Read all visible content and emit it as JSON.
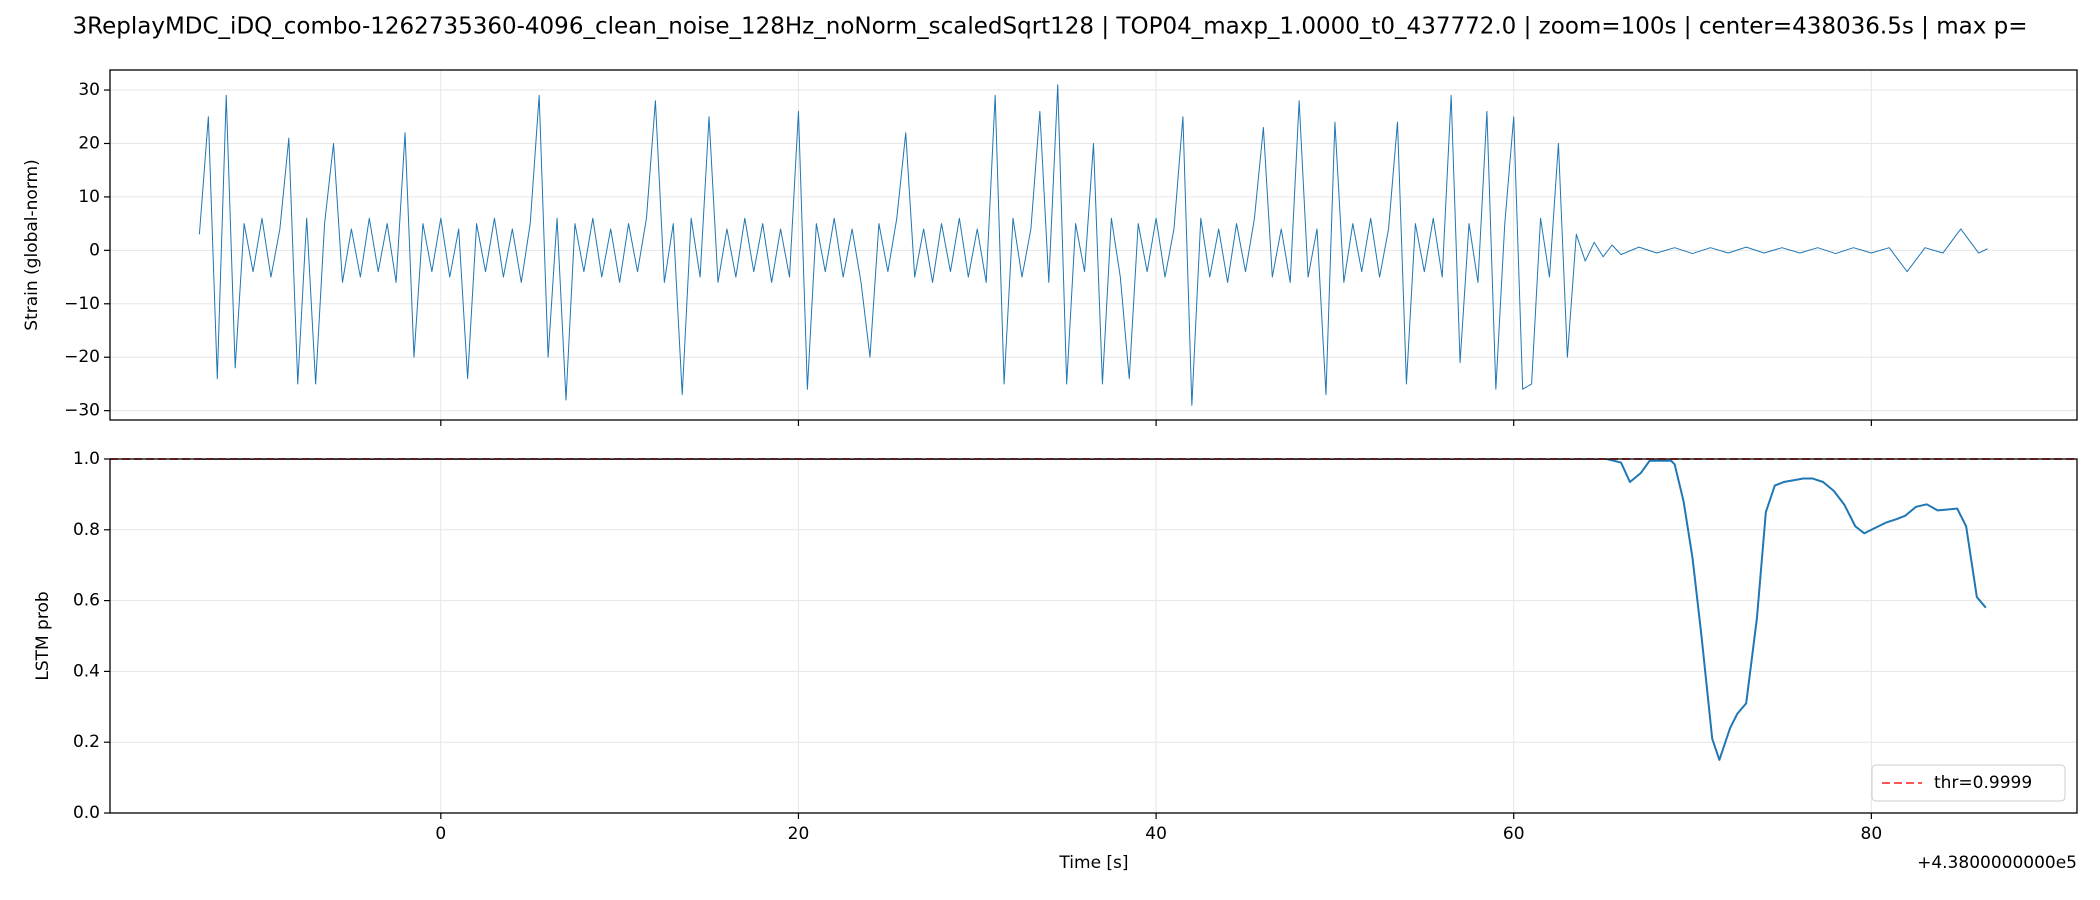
{
  "title": "3ReplayMDC_iDQ_combo-1262735360-4096_clean_noise_128Hz_noNorm_scaledSqrt128 | TOP04_maxp_1.0000_t0_437772.0 | zoom=100s | center=438036.5s | max p=",
  "xlabel": "Time [s]",
  "x_offset_label": "+4.3800000000e5",
  "chart_data": [
    {
      "type": "line",
      "ylabel": "Strain (global-norm)",
      "grid": true,
      "xlim": [
        -18.5,
        91.5
      ],
      "xticks": [
        0,
        20,
        40,
        60,
        80
      ],
      "show_xtick_labels": false,
      "ylim": [
        -31.75,
        33.75
      ],
      "yticks": [
        {
          "value": -30,
          "label": "−30"
        },
        {
          "value": -20,
          "label": "−20"
        },
        {
          "value": -10,
          "label": "−10"
        },
        0,
        10,
        20,
        30
      ],
      "series": [
        {
          "color": "#1f77b4",
          "width": 1,
          "x": [
            -13.5,
            -13,
            -12.5,
            -12,
            -11.5,
            -11,
            -10.5,
            -10,
            -9.5,
            -9,
            -8.5,
            -8,
            -7.5,
            -7,
            -6.5,
            -6,
            -5.5,
            -5,
            -4.5,
            -4,
            -3.5,
            -3,
            -2.5,
            -2,
            -1.5,
            -1,
            -0.5,
            0,
            0.5,
            1,
            1.5,
            2,
            2.5,
            3,
            3.5,
            4,
            4.5,
            5,
            5.5,
            6,
            6.5,
            7,
            7.5,
            8,
            8.5,
            9,
            9.5,
            10,
            10.5,
            11,
            11.5,
            12,
            12.5,
            13,
            13.5,
            14,
            14.5,
            15,
            15.5,
            16,
            16.5,
            17,
            17.5,
            18,
            18.5,
            19,
            19.5,
            20,
            20.5,
            21,
            21.5,
            22,
            22.5,
            23,
            23.5,
            24,
            24.5,
            25,
            25.5,
            26,
            26.5,
            27,
            27.5,
            28,
            28.5,
            29,
            29.5,
            30,
            30.5,
            31,
            31.5,
            32,
            32.5,
            33,
            33.5,
            34,
            34.5,
            35,
            35.5,
            36,
            36.5,
            37,
            37.5,
            38,
            38.5,
            39,
            39.5,
            40,
            40.5,
            41,
            41.5,
            42,
            42.5,
            43,
            43.5,
            44,
            44.5,
            45,
            45.5,
            46,
            46.5,
            47,
            47.5,
            48,
            48.5,
            49,
            49.5,
            50,
            50.5,
            51,
            51.5,
            52,
            52.5,
            53,
            53.5,
            54,
            54.5,
            55,
            55.5,
            56,
            56.5,
            57,
            57.5,
            58,
            58.5,
            59,
            59.5,
            60,
            60.5,
            61,
            61.5,
            62,
            62.5,
            63,
            63.5,
            64,
            64.5,
            65,
            65.5,
            66,
            67,
            68,
            69,
            70,
            71,
            72,
            73,
            74,
            75,
            76,
            77,
            78,
            79,
            80,
            81,
            82,
            83,
            84,
            85,
            86,
            86.5
          ],
          "values": [
            3,
            25,
            -24,
            29,
            -22,
            5,
            -4,
            6,
            -5,
            4,
            21,
            -25,
            6,
            -25,
            5,
            20,
            -6,
            4,
            -5,
            6,
            -4,
            5,
            -6,
            22,
            -20,
            5,
            -4,
            6,
            -5,
            4,
            -24,
            5,
            -4,
            6,
            -5,
            4,
            -6,
            5,
            29,
            -20,
            6,
            -28,
            5,
            -4,
            6,
            -5,
            4,
            -6,
            5,
            -4,
            6,
            28,
            -6,
            5,
            -27,
            6,
            -5,
            25,
            -6,
            4,
            -5,
            6,
            -4,
            5,
            -6,
            4,
            -5,
            26,
            -26,
            5,
            -4,
            6,
            -5,
            4,
            -6,
            -20,
            5,
            -4,
            6,
            22,
            -5,
            4,
            -6,
            5,
            -4,
            6,
            -5,
            4,
            -6,
            29,
            -25,
            6,
            -5,
            4,
            26,
            -6,
            31,
            -25,
            5,
            -4,
            20,
            -25,
            6,
            -5,
            -24,
            5,
            -4,
            6,
            -5,
            4,
            25,
            -29,
            6,
            -5,
            4,
            -6,
            5,
            -4,
            6,
            23,
            -5,
            4,
            -6,
            28,
            -5,
            4,
            -27,
            24,
            -6,
            5,
            -4,
            6,
            -5,
            4,
            24,
            -25,
            5,
            -4,
            6,
            -5,
            29,
            -21,
            5,
            -6,
            26,
            -26,
            5,
            25,
            -26,
            -25,
            6,
            -5,
            20,
            -20,
            3,
            -2,
            1.5,
            -1.2,
            1,
            -0.8,
            0.6,
            -0.5,
            0.5,
            -0.6,
            0.5,
            -0.5,
            0.6,
            -0.5,
            0.5,
            -0.5,
            0.5,
            -0.6,
            0.5,
            -0.5,
            0.5,
            -4,
            0.5,
            -0.5,
            4,
            -0.5,
            0.3
          ]
        }
      ]
    },
    {
      "type": "line",
      "ylabel": "LSTM prob",
      "grid": true,
      "xlim": [
        -18.5,
        91.5
      ],
      "xticks": [
        0,
        20,
        40,
        60,
        80
      ],
      "show_xtick_labels": true,
      "ylim": [
        0,
        1
      ],
      "yticks": [
        {
          "value": 0,
          "label": "0.0"
        },
        {
          "value": 0.2,
          "label": "0.2"
        },
        {
          "value": 0.4,
          "label": "0.4"
        },
        {
          "value": 0.6,
          "label": "0.6"
        },
        {
          "value": 0.8,
          "label": "0.8"
        },
        {
          "value": 1,
          "label": "1.0"
        }
      ],
      "series": [
        {
          "color": "#1f77b4",
          "width": 2,
          "x": [
            -13.5,
            65.2,
            66.0,
            66.5,
            67.1,
            67.6,
            68.8,
            69.0,
            69.5,
            70.0,
            70.5,
            71.1,
            71.5,
            72.1,
            72.5,
            73.0,
            73.6,
            74.1,
            74.6,
            75.1,
            76.2,
            76.7,
            77.3,
            77.9,
            78.5,
            79.1,
            79.6,
            80.2,
            80.8,
            81.4,
            81.9,
            82.5,
            83.1,
            83.7,
            84.2,
            84.8,
            85.3,
            85.9,
            86.4
          ],
          "values": [
            1.0,
            1.0,
            0.99,
            0.935,
            0.96,
            0.995,
            0.995,
            0.985,
            0.88,
            0.72,
            0.5,
            0.21,
            0.15,
            0.24,
            0.28,
            0.31,
            0.55,
            0.85,
            0.925,
            0.935,
            0.945,
            0.945,
            0.935,
            0.91,
            0.87,
            0.81,
            0.79,
            0.805,
            0.82,
            0.83,
            0.84,
            0.865,
            0.872,
            0.855,
            0.857,
            0.86,
            0.81,
            0.61,
            0.58
          ]
        }
      ],
      "hlines": [
        {
          "name": "thr=0.9999",
          "value": 0.9999,
          "color": "#ff5555",
          "dashed": true
        }
      ],
      "legend": "lower right"
    }
  ]
}
